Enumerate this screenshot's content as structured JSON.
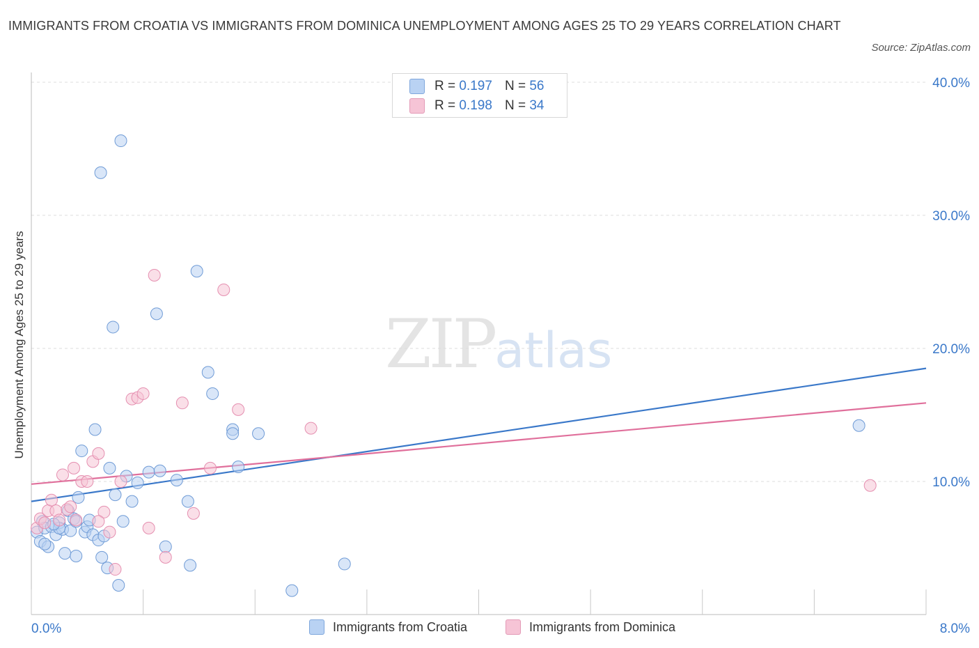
{
  "title": "IMMIGRANTS FROM CROATIA VS IMMIGRANTS FROM DOMINICA UNEMPLOYMENT AMONG AGES 25 TO 29 YEARS CORRELATION CHART",
  "source": "Source: ZipAtlas.com",
  "watermark": {
    "zip": "ZIP",
    "atlas": "atlas"
  },
  "legend": {
    "rows": [
      {
        "r_label": "R = ",
        "r_value": "0.197",
        "n_label": "N = ",
        "n_value": "56"
      },
      {
        "r_label": "R = ",
        "r_value": "0.198",
        "n_label": "N = ",
        "n_value": "34"
      }
    ]
  },
  "chart_data": {
    "type": "scatter",
    "title": "IMMIGRANTS FROM CROATIA VS IMMIGRANTS FROM DOMINICA UNEMPLOYMENT AMONG AGES 25 TO 29 YEARS CORRELATION CHART",
    "xlabel": "",
    "ylabel": "Unemployment Among Ages 25 to 29 years",
    "xlim": [
      0,
      8
    ],
    "ylim": [
      0,
      40
    ],
    "x_tick_labels": [
      "0.0%",
      "8.0%"
    ],
    "y_ticks": [
      10,
      20,
      30,
      40
    ],
    "y_tick_labels": [
      "10.0%",
      "20.0%",
      "30.0%",
      "40.0%"
    ],
    "grid": true,
    "colors": {
      "croatia": "#3a78c9",
      "dominica": "#e06f9b",
      "croatia_fill": "#b9d2f3",
      "dominica_fill": "#f6c4d6"
    },
    "series": [
      {
        "name": "Immigrants from Croatia",
        "R": 0.197,
        "N": 56,
        "trend": [
          [
            0,
            8.5
          ],
          [
            8,
            18.5
          ]
        ],
        "points": [
          [
            0.05,
            6.2
          ],
          [
            0.08,
            5.5
          ],
          [
            0.1,
            7.0
          ],
          [
            0.12,
            6.5
          ],
          [
            0.15,
            5.1
          ],
          [
            0.18,
            6.6
          ],
          [
            0.22,
            6.0
          ],
          [
            0.25,
            6.9
          ],
          [
            0.28,
            6.4
          ],
          [
            0.3,
            4.6
          ],
          [
            0.33,
            7.8
          ],
          [
            0.35,
            6.3
          ],
          [
            0.38,
            7.2
          ],
          [
            0.4,
            4.4
          ],
          [
            0.42,
            8.8
          ],
          [
            0.45,
            12.3
          ],
          [
            0.48,
            6.2
          ],
          [
            0.5,
            6.6
          ],
          [
            0.52,
            7.1
          ],
          [
            0.55,
            6.0
          ],
          [
            0.57,
            13.9
          ],
          [
            0.6,
            5.6
          ],
          [
            0.63,
            4.3
          ],
          [
            0.65,
            5.9
          ],
          [
            0.68,
            3.5
          ],
          [
            0.7,
            11.0
          ],
          [
            0.73,
            21.6
          ],
          [
            0.75,
            9.0
          ],
          [
            0.78,
            2.2
          ],
          [
            0.8,
            35.6
          ],
          [
            0.82,
            7.0
          ],
          [
            0.85,
            10.4
          ],
          [
            0.9,
            8.5
          ],
          [
            0.95,
            9.9
          ],
          [
            1.05,
            10.7
          ],
          [
            1.12,
            22.6
          ],
          [
            1.15,
            10.8
          ],
          [
            1.2,
            5.1
          ],
          [
            1.3,
            10.1
          ],
          [
            1.4,
            8.5
          ],
          [
            1.42,
            3.7
          ],
          [
            1.48,
            25.8
          ],
          [
            1.58,
            18.2
          ],
          [
            1.62,
            16.6
          ],
          [
            1.8,
            13.9
          ],
          [
            1.8,
            13.6
          ],
          [
            1.85,
            11.1
          ],
          [
            2.03,
            13.6
          ],
          [
            2.33,
            1.8
          ],
          [
            2.8,
            3.8
          ],
          [
            7.4,
            14.2
          ],
          [
            0.62,
            33.2
          ],
          [
            0.25,
            6.5
          ],
          [
            0.4,
            7.0
          ],
          [
            0.12,
            5.3
          ],
          [
            0.2,
            6.8
          ]
        ]
      },
      {
        "name": "Immigrants from Dominica",
        "R": 0.198,
        "N": 34,
        "trend": [
          [
            0,
            9.8
          ],
          [
            8,
            15.9
          ]
        ],
        "points": [
          [
            0.05,
            6.5
          ],
          [
            0.08,
            7.2
          ],
          [
            0.12,
            6.9
          ],
          [
            0.15,
            7.8
          ],
          [
            0.18,
            8.6
          ],
          [
            0.22,
            7.8
          ],
          [
            0.25,
            7.1
          ],
          [
            0.28,
            10.5
          ],
          [
            0.32,
            7.9
          ],
          [
            0.35,
            8.1
          ],
          [
            0.38,
            11.0
          ],
          [
            0.4,
            7.1
          ],
          [
            0.45,
            10.0
          ],
          [
            0.5,
            10.0
          ],
          [
            0.55,
            11.5
          ],
          [
            0.6,
            12.1
          ],
          [
            0.65,
            7.7
          ],
          [
            0.7,
            6.2
          ],
          [
            0.75,
            3.4
          ],
          [
            0.8,
            10.0
          ],
          [
            0.9,
            16.2
          ],
          [
            0.95,
            16.3
          ],
          [
            1.0,
            16.6
          ],
          [
            1.05,
            6.5
          ],
          [
            1.1,
            25.5
          ],
          [
            1.2,
            4.3
          ],
          [
            1.35,
            15.9
          ],
          [
            1.45,
            7.6
          ],
          [
            1.6,
            11.0
          ],
          [
            1.72,
            24.4
          ],
          [
            1.85,
            15.4
          ],
          [
            2.5,
            14.0
          ],
          [
            7.5,
            9.7
          ],
          [
            0.6,
            7.0
          ]
        ]
      }
    ]
  },
  "bottom_legend": [
    "Immigrants from Croatia",
    "Immigrants from Dominica"
  ]
}
